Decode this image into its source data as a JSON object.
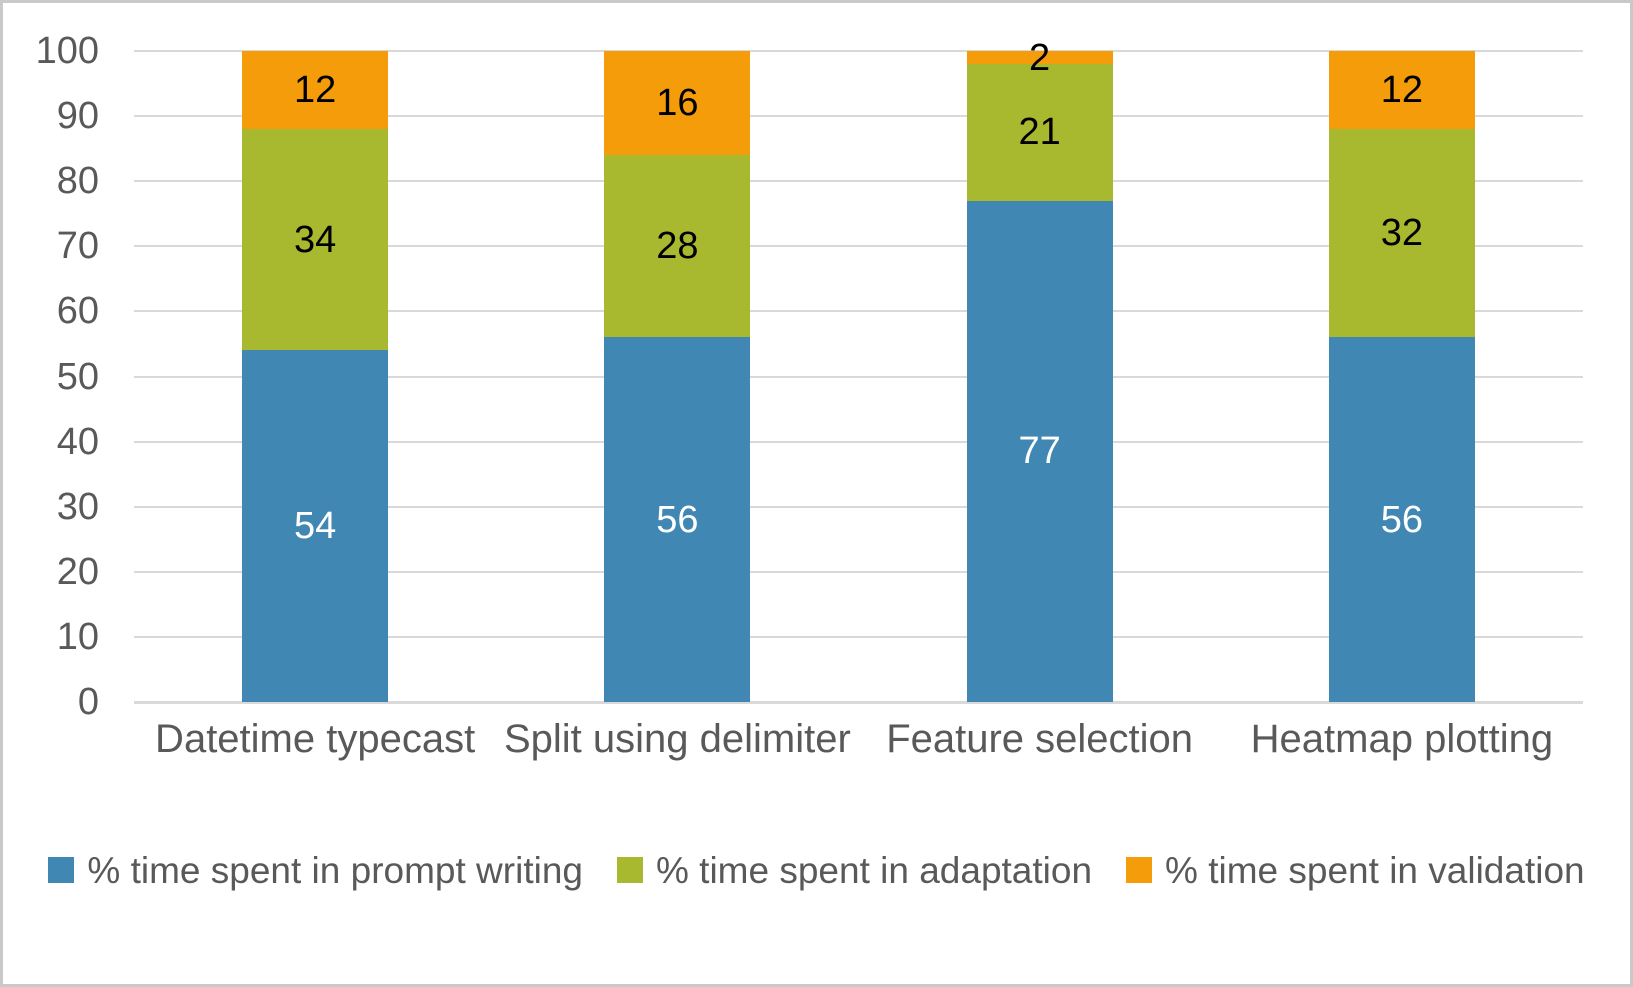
{
  "chart_data": {
    "type": "bar",
    "stacked": true,
    "title": "",
    "xlabel": "",
    "ylabel": "",
    "categories": [
      "Datetime typecast",
      "Split using delimiter",
      "Feature selection",
      "Heatmap plotting"
    ],
    "series": [
      {
        "name": "% time spent in prompt writing",
        "color": "#4187b4",
        "label_color": "#ffffff",
        "values": [
          54,
          56,
          77,
          56
        ]
      },
      {
        "name": "% time spent in adaptation",
        "color": "#a8b82f",
        "label_color": "#000000",
        "values": [
          34,
          28,
          21,
          32
        ]
      },
      {
        "name": "% time spent in validation",
        "color": "#f59c0a",
        "label_color": "#000000",
        "values": [
          12,
          16,
          2,
          12
        ]
      }
    ],
    "ylim": [
      0,
      100
    ],
    "ytick_step": 10,
    "yticks": [
      0,
      10,
      20,
      30,
      40,
      50,
      60,
      70,
      80,
      90,
      100
    ],
    "grid": true,
    "legend_position": "bottom",
    "colors": {
      "axis_text": "#595959",
      "gridline": "#d9d9d9",
      "frame_border": "#c9c9c9",
      "background": "#ffffff"
    }
  }
}
